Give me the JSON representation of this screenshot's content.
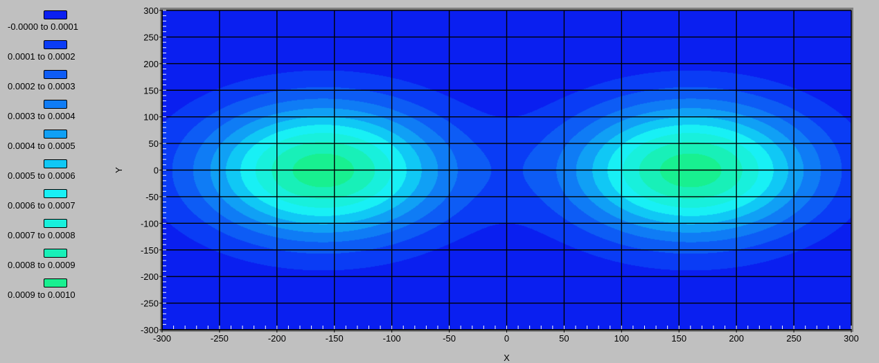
{
  "chart_data": {
    "type": "heatmap",
    "title": "",
    "xlabel": "X",
    "ylabel": "Y",
    "xlim": [
      -300,
      300
    ],
    "ylim": [
      -300,
      300
    ],
    "x_ticks": [
      "-300",
      "-250",
      "-200",
      "-150",
      "-100",
      "-50",
      "0",
      "50",
      "100",
      "150",
      "200",
      "250",
      "300"
    ],
    "y_ticks": [
      "300",
      "250",
      "200",
      "150",
      "100",
      "50",
      "0",
      "-50",
      "-100",
      "-150",
      "-200",
      "-250",
      "-300"
    ],
    "grid": true,
    "legend_position": "left",
    "levels": [
      {
        "label": "-0.0000 to 0.0001",
        "min": 0.0,
        "max": 0.0001,
        "color": "#0a1ff0"
      },
      {
        "label": "0.0001 to 0.0002",
        "min": 0.0001,
        "max": 0.0002,
        "color": "#0a3cf5"
      },
      {
        "label": "0.0002 to 0.0003",
        "min": 0.0002,
        "max": 0.0003,
        "color": "#0d5cf5"
      },
      {
        "label": "0.0003 to 0.0004",
        "min": 0.0003,
        "max": 0.0004,
        "color": "#0f7cf5"
      },
      {
        "label": "0.0004 to 0.0005",
        "min": 0.0004,
        "max": 0.0005,
        "color": "#10a0f5"
      },
      {
        "label": "0.0005 to 0.0006",
        "min": 0.0005,
        "max": 0.0006,
        "color": "#10c8f5"
      },
      {
        "label": "0.0006 to 0.0007",
        "min": 0.0006,
        "max": 0.0007,
        "color": "#18f0f5"
      },
      {
        "label": "0.0007 to 0.0008",
        "min": 0.0007,
        "max": 0.0008,
        "color": "#18f0dc"
      },
      {
        "label": "0.0008 to 0.0009",
        "min": 0.0008,
        "max": 0.0009,
        "color": "#18f0b8"
      },
      {
        "label": "0.0009 to 0.0010",
        "min": 0.0009,
        "max": 0.001,
        "color": "#18f090"
      }
    ],
    "field": {
      "peaks": [
        {
          "x": -160,
          "y": 0,
          "value": 0.00096
        },
        {
          "x": 160,
          "y": 0,
          "value": 0.00096
        }
      ]
    }
  }
}
